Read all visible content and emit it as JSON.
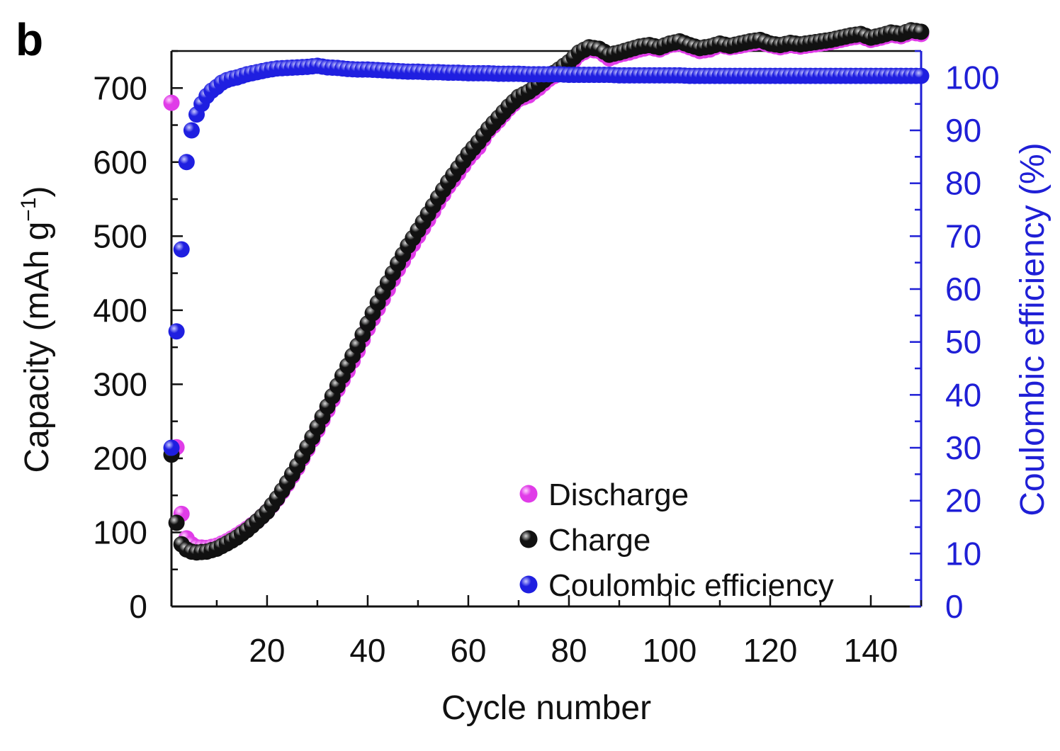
{
  "panel_label": "b",
  "colors": {
    "discharge": "#e03ce8",
    "charge": "#111111",
    "coulombic_efficiency": "#1f1fe0",
    "left_axis": "#111111",
    "right_axis": "#1f1fd6"
  },
  "chart_data": {
    "type": "scatter",
    "xlabel": "Cycle number",
    "ylabel_left_prefix": "Capacity (mAh g",
    "ylabel_left_superscript": "−1",
    "ylabel_left_suffix": ")",
    "ylabel_right": "Coulombic efficiency (%)",
    "xlim": [
      1,
      150
    ],
    "ylim_left": [
      0,
      750
    ],
    "ylim_right": [
      0,
      105
    ],
    "x_ticks": [
      20,
      40,
      60,
      80,
      100,
      120,
      140
    ],
    "y_left_ticks": [
      0,
      100,
      200,
      300,
      400,
      500,
      600,
      700
    ],
    "y_right_ticks": [
      0,
      10,
      20,
      30,
      40,
      50,
      60,
      70,
      80,
      90,
      100
    ],
    "legend_position": "bottom-center",
    "grid": false,
    "series": [
      {
        "name": "Discharge",
        "axis": "left",
        "x": [
          1,
          2,
          3,
          4,
          5,
          6,
          8,
          10,
          12,
          14,
          16,
          18,
          20,
          22,
          24,
          26,
          28,
          30,
          32,
          34,
          36,
          38,
          40,
          42,
          44,
          46,
          48,
          50,
          52,
          54,
          56,
          58,
          60,
          62,
          64,
          66,
          68,
          70,
          72,
          74,
          76,
          78,
          80,
          82,
          84,
          86,
          88,
          90,
          92,
          94,
          96,
          98,
          100,
          102,
          104,
          106,
          108,
          110,
          112,
          114,
          116,
          118,
          120,
          122,
          124,
          126,
          128,
          130,
          132,
          134,
          136,
          138,
          140,
          142,
          144,
          146,
          148,
          150
        ],
        "y": [
          680,
          215,
          125,
          92,
          84,
          80,
          79,
          82,
          88,
          96,
          105,
          115,
          128,
          145,
          165,
          187,
          212,
          238,
          265,
          293,
          318,
          345,
          375,
          402,
          428,
          455,
          478,
          500,
          522,
          545,
          567,
          585,
          605,
          620,
          642,
          656,
          672,
          685,
          690,
          700,
          712,
          720,
          730,
          745,
          752,
          750,
          740,
          745,
          748,
          752,
          755,
          752,
          758,
          760,
          755,
          750,
          752,
          758,
          755,
          757,
          760,
          762,
          758,
          755,
          758,
          756,
          758,
          760,
          762,
          765,
          768,
          770,
          765,
          768,
          772,
          770,
          775,
          773
        ]
      },
      {
        "name": "Charge",
        "axis": "left",
        "x": [
          1,
          2,
          3,
          4,
          5,
          6,
          8,
          10,
          12,
          14,
          16,
          18,
          20,
          22,
          24,
          26,
          28,
          30,
          32,
          34,
          36,
          38,
          40,
          42,
          44,
          46,
          48,
          50,
          52,
          54,
          56,
          58,
          60,
          62,
          64,
          66,
          68,
          70,
          72,
          74,
          76,
          78,
          80,
          82,
          84,
          86,
          88,
          90,
          92,
          94,
          96,
          98,
          100,
          102,
          104,
          106,
          108,
          110,
          112,
          114,
          116,
          118,
          120,
          122,
          124,
          126,
          128,
          130,
          132,
          134,
          136,
          138,
          140,
          142,
          144,
          146,
          148,
          150
        ],
        "y": [
          205,
          113,
          84,
          77,
          74,
          73,
          74,
          78,
          85,
          93,
          103,
          115,
          128,
          146,
          167,
          190,
          215,
          242,
          270,
          298,
          325,
          352,
          382,
          410,
          437,
          463,
          487,
          508,
          530,
          552,
          573,
          592,
          611,
          627,
          645,
          660,
          675,
          688,
          695,
          705,
          716,
          725,
          735,
          748,
          755,
          753,
          745,
          748,
          752,
          756,
          758,
          755,
          760,
          763,
          758,
          754,
          756,
          760,
          757,
          760,
          763,
          765,
          760,
          758,
          761,
          759,
          761,
          763,
          765,
          768,
          771,
          773,
          768,
          771,
          775,
          773,
          778,
          776
        ]
      },
      {
        "name": "Coulombic efficiency",
        "axis": "right",
        "x": [
          1,
          2,
          3,
          4,
          5,
          6,
          7,
          8,
          9,
          10,
          11,
          12,
          13,
          14,
          15,
          16,
          18,
          20,
          22,
          24,
          26,
          28,
          30,
          32,
          34,
          36,
          38,
          40,
          42,
          44,
          46,
          48,
          50,
          52,
          54,
          56,
          58,
          60,
          62,
          64,
          66,
          68,
          70,
          72,
          74,
          76,
          78,
          80,
          82,
          84,
          86,
          88,
          90,
          92,
          94,
          96,
          98,
          100,
          102,
          104,
          106,
          108,
          110,
          112,
          114,
          116,
          118,
          120,
          122,
          124,
          126,
          128,
          130,
          132,
          134,
          136,
          138,
          140,
          142,
          144,
          146,
          148,
          150
        ],
        "y": [
          30,
          52,
          67.5,
          84,
          90,
          93,
          95,
          96.5,
          97.5,
          98.2,
          99,
          99.5,
          99.8,
          100,
          100.3,
          100.6,
          101,
          101.4,
          101.7,
          101.8,
          101.9,
          102,
          102.2,
          101.9,
          101.8,
          101.6,
          101.5,
          101.5,
          101.4,
          101.3,
          101.2,
          101.1,
          101.1,
          101,
          101,
          100.9,
          100.9,
          100.8,
          100.8,
          100.8,
          100.7,
          100.7,
          100.7,
          100.6,
          100.6,
          100.6,
          100.6,
          100.5,
          100.5,
          100.5,
          100.5,
          100.5,
          100.4,
          100.4,
          100.4,
          100.4,
          100.4,
          100.4,
          100.4,
          100.3,
          100.3,
          100.3,
          100.3,
          100.3,
          100.3,
          100.3,
          100.3,
          100.3,
          100.3,
          100.3,
          100.3,
          100.3,
          100.3,
          100.3,
          100.3,
          100.3,
          100.3,
          100.3,
          100.3,
          100.3,
          100.3,
          100.3,
          100.3
        ]
      }
    ]
  }
}
